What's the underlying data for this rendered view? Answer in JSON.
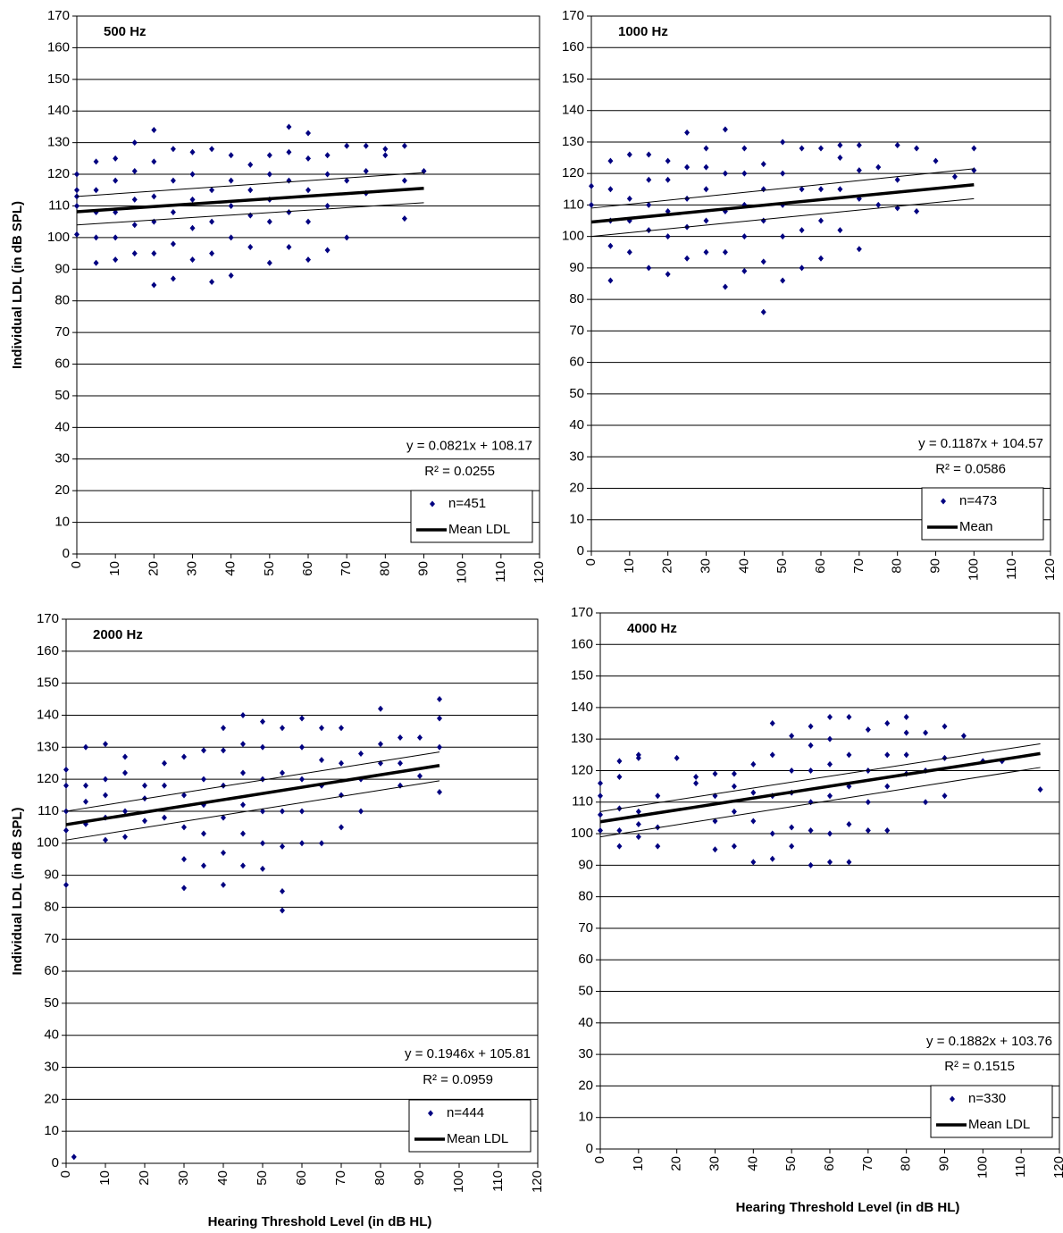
{
  "chart_data": [
    {
      "type": "scatter",
      "title": "500 Hz",
      "ylabel": "Individual LDL (in dB SPL)",
      "equation": "y = 0.0821x + 108.17",
      "r2": "R² = 0.0255",
      "xlim": [
        0,
        120
      ],
      "xticks": [
        0,
        10,
        20,
        30,
        40,
        50,
        60,
        70,
        80,
        90,
        100,
        110,
        120
      ],
      "ylim": [
        0,
        170
      ],
      "yticks": [
        0,
        10,
        20,
        30,
        40,
        50,
        60,
        70,
        80,
        90,
        100,
        110,
        120,
        130,
        140,
        150,
        160,
        170
      ],
      "grid": true,
      "legend": "lower right",
      "series": [
        {
          "type": "scatter",
          "name": "n=451",
          "color": "#000080",
          "x": [
            0,
            0,
            0,
            0,
            0,
            5,
            5,
            5,
            5,
            5,
            10,
            10,
            10,
            10,
            10,
            15,
            15,
            15,
            15,
            15,
            20,
            20,
            20,
            20,
            20,
            20,
            25,
            25,
            25,
            25,
            25,
            30,
            30,
            30,
            30,
            30,
            35,
            35,
            35,
            35,
            35,
            40,
            40,
            40,
            40,
            40,
            45,
            45,
            45,
            45,
            50,
            50,
            50,
            50,
            50,
            55,
            55,
            55,
            55,
            55,
            60,
            60,
            60,
            60,
            60,
            65,
            65,
            65,
            65,
            70,
            70,
            70,
            75,
            75,
            75,
            80,
            80,
            85,
            85,
            85,
            90
          ],
          "values": [
            101,
            110,
            115,
            120,
            113,
            92,
            100,
            108,
            115,
            124,
            93,
            100,
            108,
            118,
            125,
            95,
            104,
            112,
            121,
            130,
            85,
            95,
            105,
            113,
            124,
            134,
            87,
            98,
            108,
            118,
            128,
            93,
            103,
            112,
            120,
            127,
            86,
            95,
            105,
            115,
            128,
            88,
            100,
            110,
            118,
            126,
            97,
            107,
            115,
            123,
            92,
            105,
            112,
            120,
            126,
            97,
            108,
            118,
            127,
            135,
            93,
            105,
            115,
            125,
            133,
            96,
            110,
            120,
            126,
            100,
            118,
            129,
            114,
            121,
            129,
            126,
            128,
            106,
            118,
            129,
            121
          ]
        },
        {
          "type": "line",
          "name": "Mean LDL",
          "color": "#000000",
          "x": [
            0,
            90
          ],
          "values": [
            108.17,
            115.56
          ]
        },
        {
          "type": "line",
          "color": "#000000",
          "x": [
            0,
            90
          ],
          "values": [
            113,
            120.5
          ]
        },
        {
          "type": "line",
          "color": "#000000",
          "x": [
            0,
            90
          ],
          "values": [
            104,
            111
          ]
        }
      ]
    },
    {
      "type": "scatter",
      "title": "1000 Hz",
      "equation": "y = 0.1187x + 104.57",
      "r2": "R² = 0.0586",
      "xlim": [
        0,
        120
      ],
      "xticks": [
        0,
        10,
        20,
        30,
        40,
        50,
        60,
        70,
        80,
        90,
        100,
        110,
        120
      ],
      "ylim": [
        0,
        170
      ],
      "yticks": [
        0,
        10,
        20,
        30,
        40,
        50,
        60,
        70,
        80,
        90,
        100,
        110,
        120,
        130,
        140,
        150,
        160,
        170
      ],
      "grid": true,
      "legend": "lower right",
      "series": [
        {
          "type": "scatter",
          "name": "n=473",
          "color": "#000080",
          "x": [
            0,
            0,
            5,
            5,
            5,
            5,
            5,
            10,
            10,
            10,
            10,
            15,
            15,
            15,
            15,
            15,
            20,
            20,
            20,
            20,
            20,
            25,
            25,
            25,
            25,
            25,
            30,
            30,
            30,
            30,
            30,
            35,
            35,
            35,
            35,
            35,
            40,
            40,
            40,
            40,
            40,
            45,
            45,
            45,
            45,
            45,
            50,
            50,
            50,
            50,
            50,
            55,
            55,
            55,
            55,
            60,
            60,
            60,
            60,
            65,
            65,
            65,
            65,
            70,
            70,
            70,
            70,
            75,
            75,
            80,
            80,
            80,
            85,
            85,
            90,
            95,
            100,
            100
          ],
          "values": [
            110,
            116,
            86,
            97,
            105,
            115,
            124,
            95,
            105,
            112,
            126,
            90,
            102,
            110,
            118,
            126,
            88,
            100,
            108,
            118,
            124,
            93,
            103,
            112,
            122,
            133,
            95,
            105,
            115,
            122,
            128,
            84,
            95,
            108,
            120,
            134,
            89,
            100,
            110,
            120,
            128,
            76,
            92,
            105,
            115,
            123,
            86,
            100,
            110,
            120,
            130,
            90,
            102,
            115,
            128,
            93,
            105,
            115,
            128,
            102,
            115,
            125,
            129,
            96,
            112,
            121,
            129,
            110,
            122,
            109,
            118,
            129,
            108,
            128,
            124,
            119,
            121,
            128
          ]
        },
        {
          "type": "line",
          "name": "Mean",
          "color": "#000000",
          "x": [
            0,
            100
          ],
          "values": [
            104.57,
            116.44
          ]
        },
        {
          "type": "line",
          "color": "#000000",
          "x": [
            0,
            100
          ],
          "values": [
            109,
            121.5
          ]
        },
        {
          "type": "line",
          "color": "#000000",
          "x": [
            0,
            100
          ],
          "values": [
            100,
            112
          ]
        }
      ]
    },
    {
      "type": "scatter",
      "title": "2000 Hz",
      "ylabel": "Individual LDL (in dB SPL)",
      "xlabel": "Hearing Threshold Level (in dB HL)",
      "equation": "y = 0.1946x + 105.81",
      "r2": "R² = 0.0959",
      "xlim": [
        0,
        120
      ],
      "xticks": [
        0,
        10,
        20,
        30,
        40,
        50,
        60,
        70,
        80,
        90,
        100,
        110,
        120
      ],
      "ylim": [
        0,
        170
      ],
      "yticks": [
        0,
        10,
        20,
        30,
        40,
        50,
        60,
        70,
        80,
        90,
        100,
        110,
        120,
        130,
        140,
        150,
        160,
        170
      ],
      "grid": true,
      "legend": "lower right",
      "series": [
        {
          "type": "scatter",
          "name": "n=444",
          "color": "#000080",
          "x": [
            0,
            0,
            0,
            0,
            0,
            2,
            5,
            5,
            5,
            5,
            10,
            10,
            10,
            10,
            10,
            15,
            15,
            15,
            15,
            20,
            20,
            20,
            25,
            25,
            25,
            30,
            30,
            30,
            30,
            30,
            35,
            35,
            35,
            35,
            35,
            40,
            40,
            40,
            40,
            40,
            40,
            45,
            45,
            45,
            45,
            45,
            45,
            50,
            50,
            50,
            50,
            50,
            50,
            55,
            55,
            55,
            55,
            55,
            55,
            60,
            60,
            60,
            60,
            60,
            65,
            65,
            65,
            65,
            70,
            70,
            70,
            70,
            75,
            75,
            75,
            80,
            80,
            80,
            85,
            85,
            85,
            90,
            90,
            95,
            95,
            95,
            95
          ],
          "values": [
            87,
            104,
            110,
            118,
            123,
            2,
            106,
            113,
            118,
            130,
            101,
            108,
            115,
            120,
            131,
            102,
            110,
            122,
            127,
            107,
            114,
            118,
            108,
            118,
            125,
            86,
            95,
            105,
            115,
            127,
            93,
            103,
            112,
            120,
            129,
            87,
            97,
            108,
            118,
            129,
            136,
            93,
            103,
            112,
            122,
            131,
            140,
            92,
            100,
            110,
            120,
            130,
            138,
            79,
            85,
            99,
            110,
            122,
            136,
            100,
            110,
            120,
            130,
            139,
            100,
            118,
            126,
            136,
            105,
            115,
            125,
            136,
            110,
            120,
            128,
            125,
            131,
            142,
            118,
            125,
            133,
            121,
            133,
            116,
            130,
            139,
            145
          ]
        },
        {
          "type": "line",
          "name": "Mean LDL",
          "color": "#000000",
          "x": [
            0,
            95
          ],
          "values": [
            105.81,
            124.3
          ]
        },
        {
          "type": "line",
          "color": "#000000",
          "x": [
            0,
            95
          ],
          "values": [
            110,
            128.5
          ]
        },
        {
          "type": "line",
          "color": "#000000",
          "x": [
            0,
            95
          ],
          "values": [
            101,
            119.5
          ]
        }
      ]
    },
    {
      "type": "scatter",
      "title": "4000 Hz",
      "xlabel": "Hearing Threshold Level (in dB HL)",
      "equation": "y = 0.1882x + 103.76",
      "r2": "R² = 0.1515",
      "xlim": [
        0,
        120
      ],
      "xticks": [
        0,
        10,
        20,
        30,
        40,
        50,
        60,
        70,
        80,
        90,
        100,
        110,
        120
      ],
      "ylim": [
        0,
        170
      ],
      "yticks": [
        0,
        10,
        20,
        30,
        40,
        50,
        60,
        70,
        80,
        90,
        100,
        110,
        120,
        130,
        140,
        150,
        160,
        170
      ],
      "grid": true,
      "legend": "lower right",
      "series": [
        {
          "type": "scatter",
          "name": "n=330",
          "color": "#000080",
          "x": [
            0,
            0,
            0,
            0,
            5,
            5,
            5,
            5,
            5,
            10,
            10,
            10,
            10,
            10,
            15,
            15,
            15,
            20,
            25,
            25,
            30,
            30,
            30,
            30,
            35,
            35,
            35,
            35,
            40,
            40,
            40,
            40,
            45,
            45,
            45,
            45,
            45,
            50,
            50,
            50,
            50,
            50,
            55,
            55,
            55,
            55,
            55,
            55,
            60,
            60,
            60,
            60,
            60,
            60,
            65,
            65,
            65,
            65,
            65,
            70,
            70,
            70,
            70,
            75,
            75,
            75,
            75,
            80,
            80,
            80,
            80,
            85,
            85,
            85,
            90,
            90,
            90,
            95,
            100,
            105,
            115
          ],
          "values": [
            101,
            106,
            112,
            116,
            96,
            101,
            108,
            118,
            123,
            99,
            103,
            107,
            124,
            125,
            96,
            102,
            112,
            124,
            116,
            118,
            95,
            104,
            112,
            119,
            96,
            107,
            115,
            119,
            91,
            104,
            113,
            122,
            92,
            100,
            112,
            125,
            135,
            96,
            102,
            113,
            120,
            131,
            90,
            101,
            110,
            120,
            128,
            134,
            91,
            100,
            112,
            122,
            130,
            137,
            91,
            103,
            115,
            125,
            137,
            101,
            110,
            120,
            133,
            101,
            115,
            125,
            135,
            119,
            125,
            132,
            137,
            110,
            120,
            132,
            112,
            124,
            134,
            131,
            123,
            123,
            114
          ]
        },
        {
          "type": "line",
          "name": "Mean LDL",
          "color": "#000000",
          "x": [
            0,
            115
          ],
          "values": [
            103.76,
            125.4
          ]
        },
        {
          "type": "line",
          "color": "#000000",
          "x": [
            0,
            115
          ],
          "values": [
            107,
            128.5
          ]
        },
        {
          "type": "line",
          "color": "#000000",
          "x": [
            0,
            115
          ],
          "values": [
            99,
            121
          ]
        }
      ]
    }
  ]
}
